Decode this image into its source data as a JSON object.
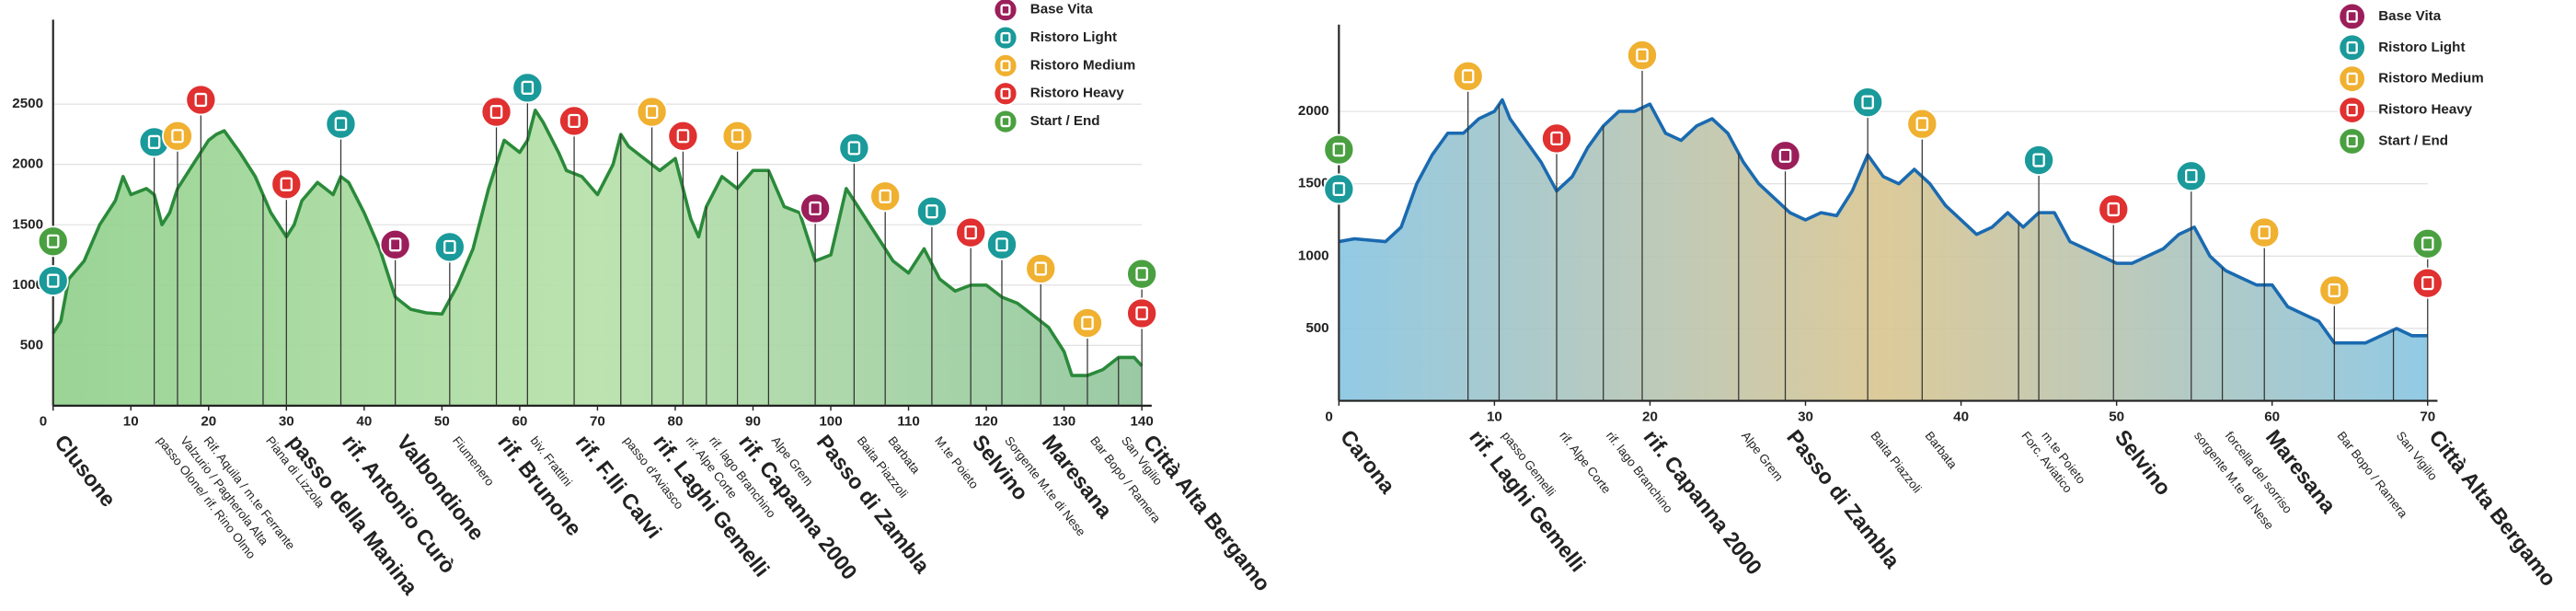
{
  "chart_data": [
    {
      "type": "area",
      "x": [
        0,
        1,
        2,
        4,
        6,
        8,
        9,
        10,
        12,
        13,
        14,
        15,
        16,
        18,
        20,
        21,
        22,
        24,
        26,
        28,
        30,
        31,
        32,
        34,
        36,
        37,
        38,
        40,
        42,
        44,
        46,
        48,
        50,
        52,
        54,
        56,
        58,
        60,
        61,
        62,
        63,
        65,
        66,
        68,
        70,
        72,
        73,
        74,
        76,
        78,
        80,
        82,
        83,
        84,
        86,
        88,
        90,
        92,
        94,
        96,
        98,
        100,
        102,
        103,
        104,
        106,
        108,
        110,
        112,
        114,
        116,
        118,
        120,
        122,
        124,
        126,
        128,
        130,
        131,
        133,
        135,
        137,
        139,
        140
      ],
      "values": [
        600,
        700,
        1050,
        1200,
        1500,
        1700,
        1900,
        1750,
        1800,
        1750,
        1500,
        1600,
        1800,
        2000,
        2200,
        2250,
        2280,
        2100,
        1900,
        1600,
        1400,
        1500,
        1700,
        1850,
        1750,
        1900,
        1850,
        1600,
        1300,
        900,
        800,
        770,
        760,
        1000,
        1300,
        1800,
        2200,
        2100,
        2200,
        2450,
        2350,
        2100,
        1950,
        1900,
        1750,
        2000,
        2250,
        2150,
        2050,
        1950,
        2050,
        1550,
        1400,
        1650,
        1900,
        1800,
        1950,
        1950,
        1650,
        1600,
        1200,
        1250,
        1800,
        1700,
        1600,
        1400,
        1200,
        1100,
        1300,
        1050,
        950,
        1000,
        1000,
        900,
        850,
        750,
        650,
        450,
        250,
        250,
        300,
        400,
        400,
        330
      ],
      "xlim": [
        0,
        140
      ],
      "ylim": [
        0,
        3200
      ],
      "xticks": [
        0,
        10,
        20,
        30,
        40,
        50,
        60,
        70,
        80,
        90,
        100,
        110,
        120,
        130,
        140
      ],
      "yticks": [
        500,
        1000,
        1500,
        2000,
        2500
      ],
      "grid": true,
      "line_color": "#2a8a3a",
      "fill_colors": [
        "#8fcf8a",
        "#b5e0a8",
        "#8fc49a"
      ],
      "legend": [
        {
          "name": "Base Vita",
          "color": "#9b1e5a"
        },
        {
          "name": "Ristoro Light",
          "color": "#1a9a9a"
        },
        {
          "name": "Ristoro Medium",
          "color": "#f0b030"
        },
        {
          "name": "Ristoro Heavy",
          "color": "#e03030"
        },
        {
          "name": "Start / End",
          "color": "#4aa040"
        }
      ],
      "stations": [
        {
          "km": 0,
          "label": "Clusone",
          "bold": true,
          "markers": [
            "Ristoro Light",
            "Start / End"
          ]
        },
        {
          "km": 13,
          "label": "passo Olone/ rif. Rino Olmo",
          "bold": false,
          "markers": [
            "Ristoro Light"
          ]
        },
        {
          "km": 16,
          "label": "Valzurio / Pagherola Alta",
          "bold": false,
          "markers": [
            "Ristoro Medium"
          ]
        },
        {
          "km": 19,
          "label": "Rif. Aquila / m.te Ferrante",
          "bold": false,
          "markers": [
            "Ristoro Heavy"
          ]
        },
        {
          "km": 27,
          "label": "Piana di Lizzola",
          "bold": false,
          "markers": []
        },
        {
          "km": 30,
          "label": "passo della Manina",
          "bold": true,
          "markers": [
            "Ristoro Heavy"
          ]
        },
        {
          "km": 37,
          "label": "rif. Antonio Curò",
          "bold": true,
          "markers": [
            "Ristoro Light"
          ]
        },
        {
          "km": 44,
          "label": "Valbondione",
          "bold": true,
          "markers": [
            "Base Vita"
          ]
        },
        {
          "km": 51,
          "label": "Fiumenero",
          "bold": false,
          "markers": [
            "Ristoro Light"
          ]
        },
        {
          "km": 57,
          "label": "rif. Brunone",
          "bold": true,
          "markers": [
            "Ristoro Heavy"
          ]
        },
        {
          "km": 61,
          "label": "biv. Frattini",
          "bold": false,
          "markers": [
            "Ristoro Light"
          ]
        },
        {
          "km": 67,
          "label": "rif. F.lli Calvi",
          "bold": true,
          "markers": [
            "Ristoro Heavy"
          ]
        },
        {
          "km": 73,
          "label": "passo d'Aviasco",
          "bold": false,
          "markers": []
        },
        {
          "km": 77,
          "label": "rif. Laghi Gemelli",
          "bold": true,
          "markers": [
            "Ristoro Medium"
          ]
        },
        {
          "km": 81,
          "label": "rif. Alpe Corte",
          "bold": false,
          "markers": [
            "Ristoro Heavy"
          ]
        },
        {
          "km": 84,
          "label": "rif. lago Branchino",
          "bold": false,
          "markers": []
        },
        {
          "km": 88,
          "label": "rif. Capanna 2000",
          "bold": true,
          "markers": [
            "Ristoro Medium"
          ]
        },
        {
          "km": 92,
          "label": "Alpe Grem",
          "bold": false,
          "markers": []
        },
        {
          "km": 98,
          "label": "Passo di Zambla",
          "bold": true,
          "markers": [
            "Base Vita"
          ]
        },
        {
          "km": 103,
          "label": "Baita Piazzoli",
          "bold": false,
          "markers": [
            "Ristoro Light"
          ]
        },
        {
          "km": 107,
          "label": "Barbata",
          "bold": false,
          "markers": [
            "Ristoro Medium"
          ]
        },
        {
          "km": 113,
          "label": "M.te Poieto",
          "bold": false,
          "markers": [
            "Ristoro Light"
          ]
        },
        {
          "km": 118,
          "label": "Selvino",
          "bold": true,
          "markers": [
            "Ristoro Heavy"
          ]
        },
        {
          "km": 122,
          "label": "Sorgente M.te di Nese",
          "bold": false,
          "markers": [
            "Ristoro Light"
          ]
        },
        {
          "km": 127,
          "label": "Maresana",
          "bold": true,
          "markers": [
            "Ristoro Medium"
          ]
        },
        {
          "km": 133,
          "label": "Bar Bopo / Ramera",
          "bold": false,
          "markers": [
            "Ristoro Medium"
          ]
        },
        {
          "km": 137,
          "label": "San Vigilio",
          "bold": false,
          "markers": []
        },
        {
          "km": 140,
          "label": "Città Alta Bergamo",
          "bold": true,
          "markers": [
            "Ristoro Heavy",
            "Start / End"
          ]
        }
      ]
    },
    {
      "type": "area",
      "x": [
        0,
        1,
        3,
        4,
        5,
        6,
        7,
        8,
        9,
        10,
        10.5,
        11,
        12,
        13,
        14,
        15,
        16,
        17,
        18,
        19,
        20,
        21,
        22,
        23,
        24,
        25,
        26,
        27,
        28,
        29,
        30,
        31,
        32,
        33,
        34,
        35,
        36,
        37,
        38,
        39,
        40,
        41,
        42,
        43,
        44,
        45,
        46,
        47,
        48,
        49,
        50,
        51,
        52,
        53,
        54,
        55,
        56,
        57,
        58,
        59,
        60,
        61,
        62,
        63,
        64,
        65,
        66,
        67,
        68,
        69,
        70
      ],
      "values": [
        1100,
        1120,
        1100,
        1200,
        1500,
        1700,
        1850,
        1850,
        1950,
        2000,
        2080,
        1950,
        1800,
        1650,
        1450,
        1550,
        1750,
        1900,
        2000,
        2000,
        2050,
        1850,
        1800,
        1900,
        1950,
        1850,
        1650,
        1500,
        1400,
        1300,
        1250,
        1300,
        1280,
        1450,
        1700,
        1550,
        1500,
        1600,
        1500,
        1350,
        1250,
        1150,
        1200,
        1300,
        1200,
        1300,
        1300,
        1100,
        1050,
        1000,
        950,
        950,
        1000,
        1050,
        1150,
        1200,
        1000,
        900,
        850,
        800,
        800,
        650,
        600,
        550,
        400,
        400,
        400,
        450,
        500,
        450,
        450
      ],
      "xlim": [
        0,
        70
      ],
      "ylim": [
        0,
        2600
      ],
      "xticks": [
        0,
        10,
        20,
        30,
        40,
        50,
        60,
        70
      ],
      "yticks": [
        500,
        1000,
        1500,
        2000
      ],
      "grid": true,
      "line_color": "#1a6ab0",
      "fill_colors": [
        "#86c4e2",
        "#d9c58f",
        "#86c4e2"
      ],
      "legend": [
        {
          "name": "Base Vita",
          "color": "#9b1e5a"
        },
        {
          "name": "Ristoro Light",
          "color": "#1a9a9a"
        },
        {
          "name": "Ristoro Medium",
          "color": "#f0b030"
        },
        {
          "name": "Ristoro Heavy",
          "color": "#e03030"
        },
        {
          "name": "Start / End",
          "color": "#4aa040"
        }
      ],
      "stations": [
        {
          "km": 0,
          "label": "Carona",
          "bold": true,
          "markers": [
            "Ristoro Light",
            "Start / End"
          ]
        },
        {
          "km": 8.3,
          "label": "rif. Laghi Gemelli",
          "bold": true,
          "markers": [
            "Ristoro Medium"
          ]
        },
        {
          "km": 10.3,
          "label": "passo Gemelli",
          "bold": false,
          "markers": []
        },
        {
          "km": 14,
          "label": "rif. Alpe Corte",
          "bold": false,
          "markers": [
            "Ristoro Heavy"
          ]
        },
        {
          "km": 17,
          "label": "rif. lago Branchino",
          "bold": false,
          "markers": []
        },
        {
          "km": 19.5,
          "label": "rif. Capanna 2000",
          "bold": true,
          "markers": [
            "Ristoro Medium"
          ]
        },
        {
          "km": 25.7,
          "label": "Alpe Grem",
          "bold": false,
          "markers": []
        },
        {
          "km": 28.7,
          "label": "Passo di Zambla",
          "bold": true,
          "markers": [
            "Base Vita"
          ]
        },
        {
          "km": 34,
          "label": "Baita Piazzoli",
          "bold": false,
          "markers": [
            "Ristoro Light"
          ]
        },
        {
          "km": 37.5,
          "label": "Barbata",
          "bold": false,
          "markers": [
            "Ristoro Medium"
          ]
        },
        {
          "km": 43.7,
          "label": "Forc. Aviatico",
          "bold": false,
          "markers": []
        },
        {
          "km": 45,
          "label": "m.te Poieto",
          "bold": false,
          "markers": [
            "Ristoro Light"
          ]
        },
        {
          "km": 49.8,
          "label": "Selvino",
          "bold": true,
          "markers": [
            "Ristoro Heavy"
          ]
        },
        {
          "km": 54.8,
          "label": "sorgente M.te di Nese",
          "bold": false,
          "markers": [
            "Ristoro Light"
          ]
        },
        {
          "km": 56.8,
          "label": "forcella del sorriso",
          "bold": false,
          "markers": []
        },
        {
          "km": 59.5,
          "label": "Maresana",
          "bold": true,
          "markers": [
            "Ristoro Medium"
          ]
        },
        {
          "km": 64,
          "label": "Bar Bopo / Ramera",
          "bold": false,
          "markers": [
            "Ristoro Medium"
          ]
        },
        {
          "km": 67.8,
          "label": "San Vigilio",
          "bold": false,
          "markers": []
        },
        {
          "km": 70,
          "label": "Città Alta Bergamo",
          "bold": true,
          "markers": [
            "Ristoro Heavy",
            "Start / End"
          ]
        }
      ]
    }
  ]
}
